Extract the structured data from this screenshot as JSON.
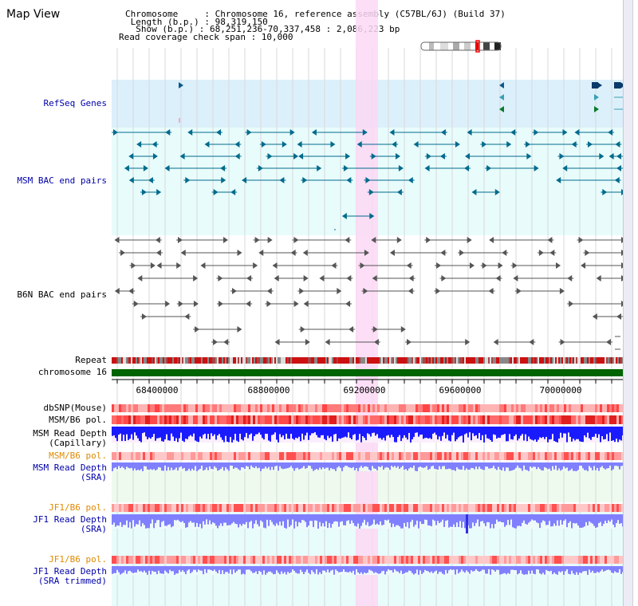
{
  "view_title": "Map View",
  "info": {
    "chromosome": "Chromosome     : Chromosome 16, reference assembly (C57BL/6J) (Build 37)",
    "length": " Length (b.p.) : 98,319,150",
    "show": "  Show (b.p.) : 68,251,236-70,337,458 : 2,086,223 bp",
    "coverage": "Read coverage check span : 10,000"
  },
  "tracks": {
    "refseq": "RefSeq Genes",
    "msm_bac": "MSM BAC end pairs",
    "b6n_bac": "B6N BAC end pairs",
    "repeat": "Repeat",
    "chromosome": "chromosome 16",
    "dbsnp": "dbSNP(Mouse)",
    "msm_b6_pol_1": "MSM/B6 pol.",
    "msm_depth_cap_1": "MSM Read Depth",
    "msm_depth_cap_2": "(Capillary)",
    "msm_b6_pol_2": "MSM/B6 pol.",
    "msm_depth_sra_1": "MSM Read Depth",
    "msm_depth_sra_2": "(SRA)",
    "jf1_b6_pol_1": "JF1/B6 pol.",
    "jf1_depth_sra_1": "JF1 Read Depth",
    "jf1_depth_sra_2": "(SRA)",
    "jf1_b6_pol_2": "JF1/B6 pol.",
    "jf1_depth_trim_1": "JF1 Read Depth",
    "jf1_depth_trim_2": "(SRA trimmed)"
  },
  "axis_ticks": [
    "68400000",
    "68800000",
    "69200000",
    "69600000",
    "70000000"
  ],
  "colors": {
    "refseq_bg": "#dcf0fb",
    "track_bg": "#e8fcfc",
    "highlight": "#fbd8f4",
    "chromosome_bar": "#006400",
    "msm_color": "#006b8c",
    "b6n_color": "#555555",
    "depth_blue": "#1a1aff",
    "depth_violet": "#8080ff"
  }
}
